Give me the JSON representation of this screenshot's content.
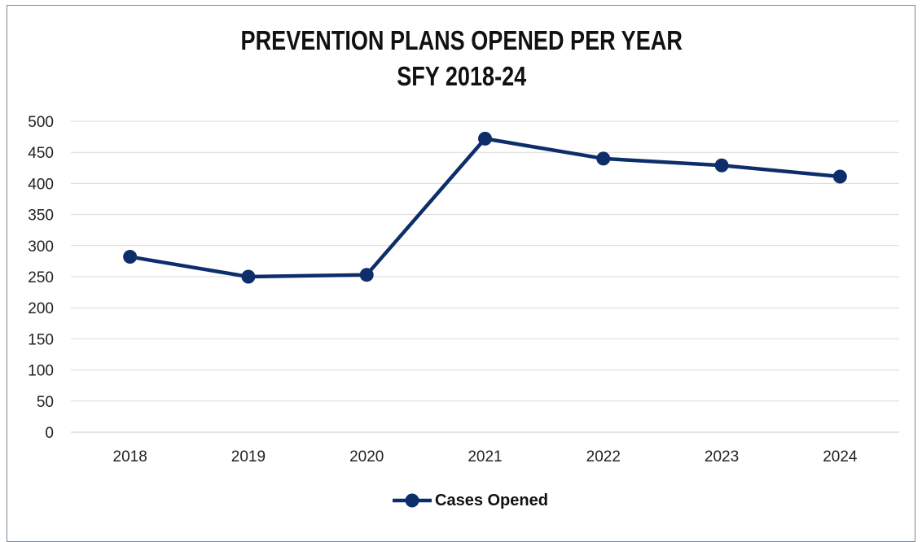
{
  "chart_data": {
    "type": "line",
    "title": "PREVENTION PLANS OPENED PER YEAR",
    "subtitle": "SFY 2018-24",
    "categories": [
      "2018",
      "2019",
      "2020",
      "2021",
      "2022",
      "2023",
      "2024"
    ],
    "series": [
      {
        "name": "Cases Opened",
        "values": [
          282,
          250,
          253,
          472,
          440,
          429,
          411
        ]
      }
    ],
    "ylim": [
      0,
      500
    ],
    "yticks": [
      0,
      50,
      100,
      150,
      200,
      250,
      300,
      350,
      400,
      450,
      500
    ],
    "grid": true,
    "legend_position": "bottom",
    "color": "#0e2d6b"
  }
}
